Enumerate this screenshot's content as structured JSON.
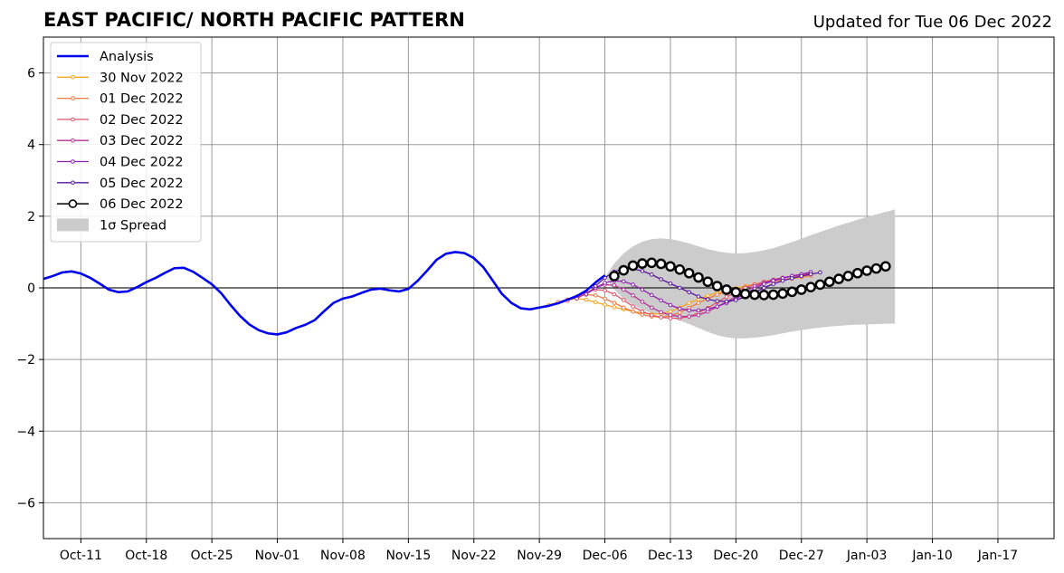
{
  "title": "EAST PACIFIC/ NORTH PACIFIC PATTERN",
  "updated": "Updated for Tue 06 Dec 2022",
  "chart_data": {
    "type": "line",
    "x_date_range": [
      "2022-10-07",
      "2023-01-23"
    ],
    "ylim": [
      -7,
      7
    ],
    "yticks": [
      -6,
      -4,
      -2,
      0,
      2,
      4,
      6
    ],
    "ytick_labels": [
      "−6",
      "−4",
      "−2",
      "0",
      "2",
      "4",
      "6"
    ],
    "xtick_dates": [
      "2022-10-11",
      "2022-10-18",
      "2022-10-25",
      "2022-11-01",
      "2022-11-08",
      "2022-11-15",
      "2022-11-22",
      "2022-11-29",
      "2022-12-06",
      "2022-12-13",
      "2022-12-20",
      "2022-12-27",
      "2023-01-03",
      "2023-01-10",
      "2023-01-17"
    ],
    "xtick_labels": [
      "Oct-11",
      "Oct-18",
      "Oct-25",
      "Nov-01",
      "Nov-08",
      "Nov-15",
      "Nov-22",
      "Nov-29",
      "Dec-06",
      "Dec-13",
      "Dec-20",
      "Dec-27",
      "Jan-03",
      "Jan-10",
      "Jan-17"
    ],
    "grid": true,
    "zero_line": true,
    "legend_position": "upper-left",
    "analysis": {
      "name": "Analysis",
      "color": "#0000ee",
      "start": "2022-10-07",
      "y": [
        0.25,
        0.33,
        0.43,
        0.46,
        0.4,
        0.28,
        0.12,
        -0.05,
        -0.12,
        -0.1,
        0.02,
        0.16,
        0.28,
        0.42,
        0.55,
        0.56,
        0.45,
        0.28,
        0.1,
        -0.15,
        -0.48,
        -0.78,
        -1.02,
        -1.18,
        -1.27,
        -1.3,
        -1.24,
        -1.12,
        -1.03,
        -0.9,
        -0.65,
        -0.42,
        -0.3,
        -0.24,
        -0.14,
        -0.05,
        -0.02,
        -0.07,
        -0.1,
        -0.03,
        0.2,
        0.48,
        0.78,
        0.95,
        1.0,
        0.97,
        0.83,
        0.58,
        0.21,
        -0.17,
        -0.42,
        -0.57,
        -0.6,
        -0.55,
        -0.5,
        -0.43,
        -0.33,
        -0.23,
        -0.08,
        0.15,
        0.35
      ]
    },
    "forecasts": [
      {
        "name": "30 Nov 2022",
        "color": "#f5a623",
        "start": "2022-11-30",
        "y": [
          -0.48,
          -0.4,
          -0.33,
          -0.3,
          -0.33,
          -0.4,
          -0.47,
          -0.54,
          -0.6,
          -0.66,
          -0.7,
          -0.73,
          -0.72,
          -0.66,
          -0.55,
          -0.42,
          -0.32,
          -0.22,
          -0.14,
          -0.08,
          -0.01,
          0.05,
          0.1,
          0.15,
          0.19,
          0.22,
          0.26,
          0.3,
          0.34
        ]
      },
      {
        "name": "01 Dec 2022",
        "color": "#ef7b45",
        "start": "2022-12-01",
        "y": [
          -0.4,
          -0.33,
          -0.24,
          -0.19,
          -0.21,
          -0.3,
          -0.42,
          -0.55,
          -0.66,
          -0.75,
          -0.8,
          -0.82,
          -0.78,
          -0.69,
          -0.56,
          -0.42,
          -0.3,
          -0.19,
          -0.11,
          -0.04,
          0.03,
          0.09,
          0.14,
          0.18,
          0.22,
          0.26,
          0.3,
          0.34
        ]
      },
      {
        "name": "02 Dec 2022",
        "color": "#e2556a",
        "start": "2022-12-02",
        "y": [
          -0.36,
          -0.25,
          -0.12,
          -0.05,
          -0.07,
          -0.18,
          -0.34,
          -0.52,
          -0.66,
          -0.76,
          -0.82,
          -0.85,
          -0.85,
          -0.8,
          -0.7,
          -0.56,
          -0.4,
          -0.25,
          -0.12,
          0.0,
          0.09,
          0.17,
          0.23,
          0.28,
          0.32,
          0.36,
          0.4
        ]
      },
      {
        "name": "03 Dec 2022",
        "color": "#b5339a",
        "start": "2022-12-03",
        "y": [
          -0.3,
          -0.15,
          0.01,
          0.09,
          0.07,
          -0.05,
          -0.21,
          -0.39,
          -0.55,
          -0.68,
          -0.76,
          -0.8,
          -0.8,
          -0.76,
          -0.66,
          -0.53,
          -0.39,
          -0.24,
          -0.1,
          0.04,
          0.14,
          0.22,
          0.28,
          0.33,
          0.38,
          0.43
        ]
      },
      {
        "name": "04 Dec 2022",
        "color": "#8e1fb0",
        "start": "2022-12-04",
        "y": [
          -0.18,
          0.0,
          0.14,
          0.2,
          0.18,
          0.09,
          -0.05,
          -0.2,
          -0.35,
          -0.48,
          -0.58,
          -0.63,
          -0.63,
          -0.59,
          -0.52,
          -0.42,
          -0.3,
          -0.16,
          -0.02,
          0.11,
          0.2,
          0.27,
          0.33,
          0.38,
          0.44
        ]
      },
      {
        "name": "05 Dec 2022",
        "color": "#5a169e",
        "start": "2022-12-05",
        "y": [
          0.05,
          0.28,
          0.45,
          0.53,
          0.53,
          0.47,
          0.37,
          0.24,
          0.12,
          0.0,
          -0.12,
          -0.24,
          -0.32,
          -0.37,
          -0.38,
          -0.34,
          -0.25,
          -0.13,
          0.0,
          0.11,
          0.2,
          0.27,
          0.33,
          0.38,
          0.43
        ]
      },
      {
        "name": "06 Dec 2022",
        "color": "#000000",
        "start": "2022-12-07",
        "y": [
          0.33,
          0.49,
          0.62,
          0.68,
          0.7,
          0.67,
          0.6,
          0.51,
          0.41,
          0.29,
          0.17,
          0.05,
          -0.05,
          -0.12,
          -0.17,
          -0.19,
          -0.2,
          -0.19,
          -0.16,
          -0.11,
          -0.05,
          0.02,
          0.09,
          0.17,
          0.25,
          0.33,
          0.41,
          0.48,
          0.54,
          0.6
        ]
      }
    ],
    "spread": {
      "name": "1σ Spread",
      "color": "#cccccc",
      "start": "2022-12-06",
      "upper": [
        0.3,
        0.68,
        0.96,
        1.16,
        1.29,
        1.36,
        1.38,
        1.36,
        1.31,
        1.24,
        1.16,
        1.08,
        1.02,
        0.98,
        0.96,
        0.97,
        1.0,
        1.05,
        1.11,
        1.19,
        1.28,
        1.37,
        1.47,
        1.56,
        1.65,
        1.74,
        1.82,
        1.9,
        1.98,
        2.05,
        2.12,
        2.19
      ],
      "lower": [
        0.3,
        -0.05,
        -0.3,
        -0.48,
        -0.61,
        -0.7,
        -0.77,
        -0.83,
        -0.91,
        -1.01,
        -1.12,
        -1.23,
        -1.32,
        -1.38,
        -1.41,
        -1.41,
        -1.39,
        -1.36,
        -1.32,
        -1.27,
        -1.22,
        -1.18,
        -1.14,
        -1.11,
        -1.08,
        -1.06,
        -1.04,
        -1.03,
        -1.02,
        -1.01,
        -1.0,
        -1.0
      ]
    }
  }
}
